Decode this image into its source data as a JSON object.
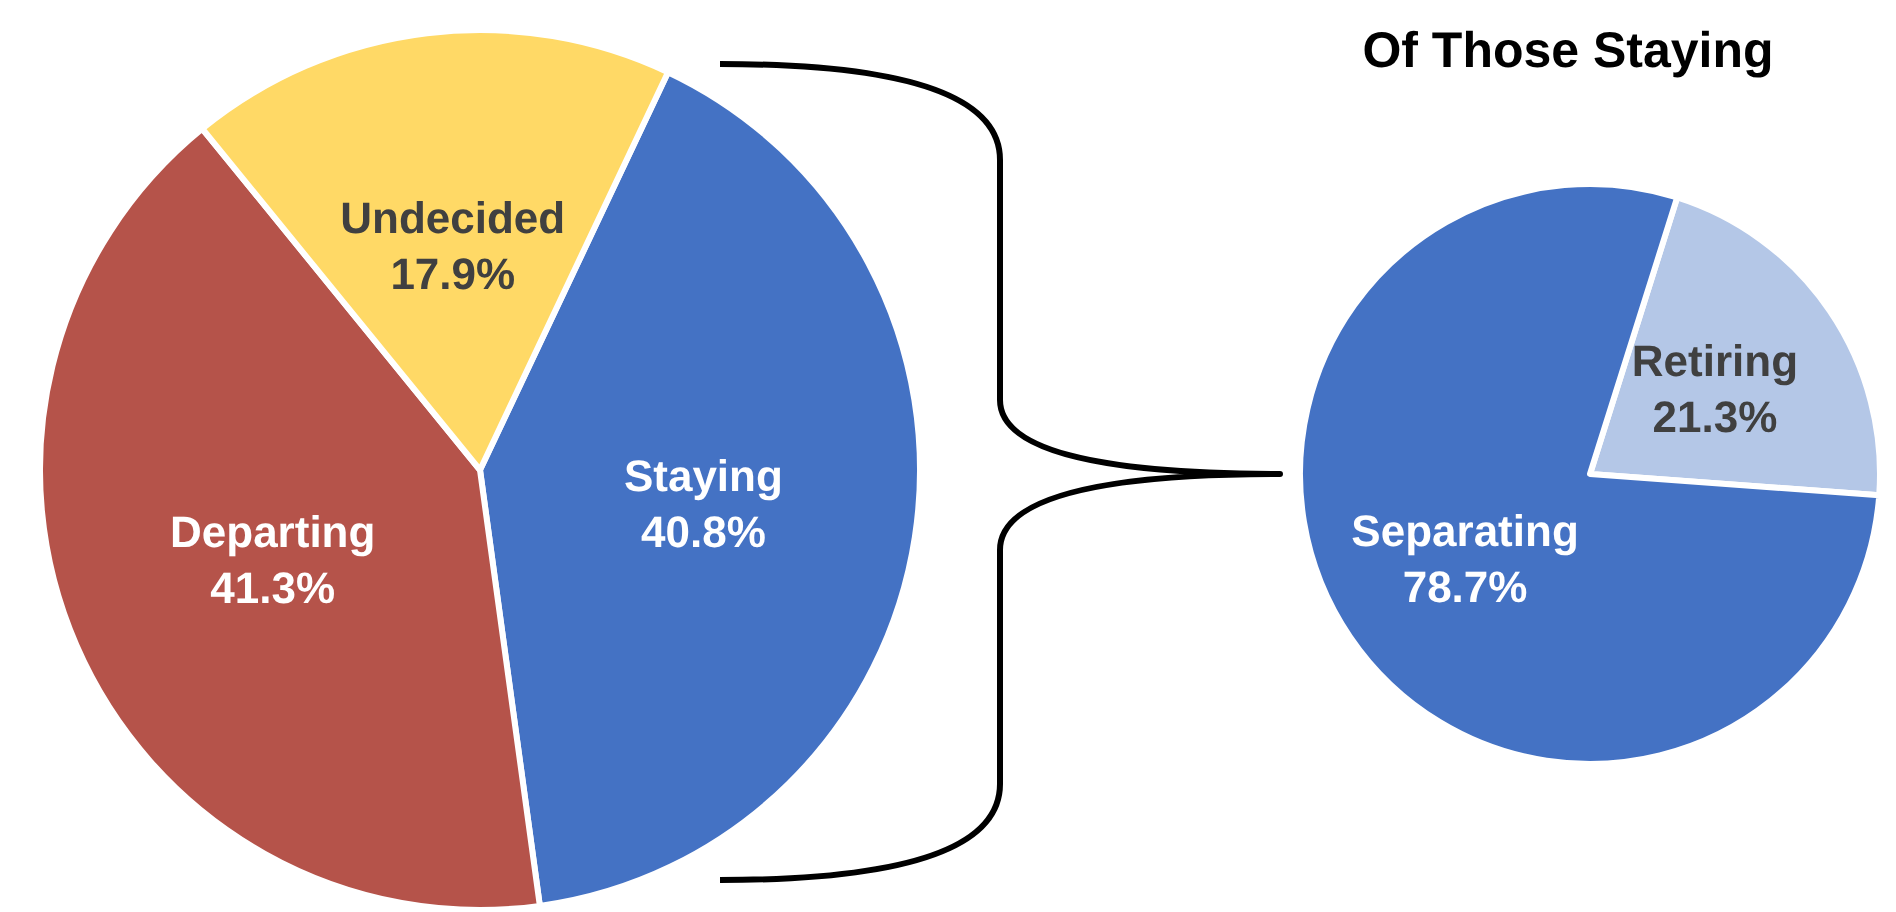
{
  "chart_data": [
    {
      "type": "pie",
      "categories": [
        "Staying",
        "Departing",
        "Undecided"
      ],
      "values": [
        40.8,
        41.3,
        17.9
      ],
      "colors": [
        "#4472c4",
        "#b5534a",
        "#ffd966"
      ],
      "value_labels": [
        "40.8%",
        "41.3%",
        "17.9%"
      ],
      "legend": false
    },
    {
      "type": "pie",
      "title": "Of Those Staying",
      "categories": [
        "Retiring",
        "Separating"
      ],
      "values": [
        21.3,
        78.7
      ],
      "colors": [
        "#b4c7e7",
        "#4472c4"
      ],
      "value_labels": [
        "21.3%",
        "78.7%"
      ],
      "legend": false
    }
  ]
}
